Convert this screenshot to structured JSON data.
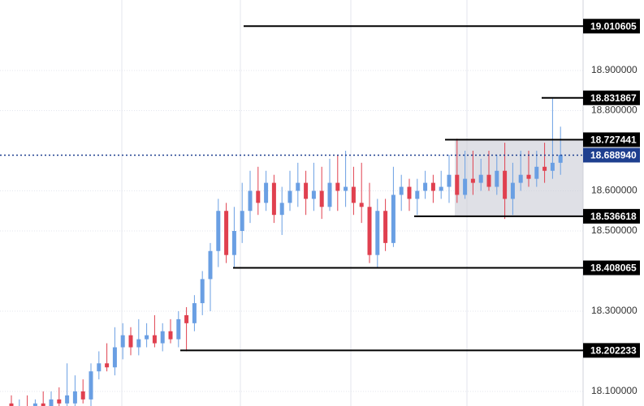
{
  "chart_data": {
    "type": "candlestick",
    "open": [
      18.07,
      18.05,
      18.06,
      18.05,
      18.07,
      18.06,
      18.08,
      18.07,
      18.07,
      18.1,
      18.08,
      18.15,
      18.17,
      18.16,
      18.21,
      18.24,
      18.21,
      18.23,
      18.24,
      18.22,
      18.25,
      18.23,
      18.29,
      18.27,
      18.32,
      18.38,
      18.45,
      18.55,
      18.44,
      18.5,
      18.55,
      18.6,
      18.57,
      18.62,
      18.54,
      18.57,
      18.6,
      18.62,
      18.58,
      18.6,
      18.56,
      18.62,
      18.6,
      18.61,
      18.57,
      18.56,
      18.44,
      18.55,
      18.47,
      18.59,
      18.61,
      18.58,
      18.6,
      18.62,
      18.6,
      18.61,
      18.64,
      18.59,
      18.63,
      18.62,
      18.64,
      18.61,
      18.65,
      18.58,
      18.62,
      18.64,
      18.63,
      18.66,
      18.65,
      18.67
    ],
    "high": [
      18.09,
      18.08,
      18.09,
      18.08,
      18.1,
      18.1,
      18.11,
      18.17,
      18.14,
      18.13,
      18.17,
      18.2,
      18.22,
      18.26,
      18.27,
      18.26,
      18.28,
      18.27,
      18.29,
      18.27,
      18.28,
      18.3,
      18.31,
      18.34,
      18.4,
      18.47,
      18.58,
      18.57,
      18.56,
      18.62,
      18.65,
      18.66,
      18.65,
      18.64,
      18.61,
      18.65,
      18.67,
      18.65,
      18.67,
      18.66,
      18.68,
      18.69,
      18.7,
      18.66,
      18.67,
      18.62,
      18.58,
      18.58,
      18.66,
      18.64,
      18.63,
      18.63,
      18.65,
      18.64,
      18.65,
      18.69,
      18.73,
      18.7,
      18.7,
      18.68,
      18.7,
      18.69,
      18.72,
      18.67,
      18.7,
      18.7,
      18.7,
      18.72,
      18.83,
      18.76
    ],
    "low": [
      18.04,
      18.03,
      18.04,
      18.03,
      18.05,
      18.04,
      18.05,
      18.06,
      18.06,
      18.07,
      18.06,
      18.13,
      18.15,
      18.14,
      18.18,
      18.19,
      18.19,
      18.21,
      18.21,
      18.2,
      18.22,
      18.21,
      18.2,
      18.25,
      18.29,
      18.3,
      18.41,
      18.42,
      18.41,
      18.47,
      18.52,
      18.54,
      18.55,
      18.52,
      18.49,
      18.55,
      18.56,
      18.54,
      18.55,
      18.53,
      18.55,
      18.55,
      18.56,
      18.54,
      18.52,
      18.42,
      18.41,
      18.45,
      18.46,
      18.55,
      18.55,
      18.54,
      18.58,
      18.57,
      18.58,
      18.57,
      18.57,
      18.58,
      18.59,
      18.6,
      18.6,
      18.59,
      18.53,
      18.54,
      18.6,
      18.61,
      18.61,
      18.62,
      18.63,
      18.64
    ],
    "close": [
      18.05,
      18.06,
      18.05,
      18.07,
      18.06,
      18.08,
      18.07,
      18.09,
      18.1,
      18.08,
      18.15,
      18.17,
      18.16,
      18.21,
      18.24,
      18.21,
      18.23,
      18.24,
      18.22,
      18.25,
      18.23,
      18.28,
      18.27,
      18.32,
      18.38,
      18.45,
      18.55,
      18.44,
      18.5,
      18.55,
      18.6,
      18.57,
      18.62,
      18.54,
      18.57,
      18.6,
      18.62,
      18.58,
      18.6,
      18.56,
      18.62,
      18.6,
      18.61,
      18.57,
      18.56,
      18.44,
      18.55,
      18.47,
      18.59,
      18.61,
      18.58,
      18.6,
      18.62,
      18.6,
      18.61,
      18.64,
      18.59,
      18.63,
      18.62,
      18.64,
      18.61,
      18.65,
      18.58,
      18.62,
      18.64,
      18.63,
      18.66,
      18.65,
      18.67,
      18.69
    ],
    "up_color": "#6a9fe3",
    "down_color": "#e0404f",
    "ylim": [
      18.0636,
      19.0758
    ],
    "yticks": [
      {
        "value": 18.1,
        "label": "18.100000"
      },
      {
        "value": 18.3,
        "label": "18.300000"
      },
      {
        "value": 18.5,
        "label": "18.500000"
      },
      {
        "value": 18.6,
        "label": "18.600000"
      },
      {
        "value": 18.8,
        "label": "18.800000"
      },
      {
        "value": 18.9,
        "label": "18.900000"
      }
    ],
    "grid": true,
    "levels": [
      19.010605,
      18.831867,
      18.727441,
      18.536618,
      18.408065,
      18.202233
    ],
    "last_price": {
      "value": 18.68894,
      "label": "18.688940"
    },
    "level_color": "#000000",
    "last_price_color": "#1e3f8f"
  }
}
